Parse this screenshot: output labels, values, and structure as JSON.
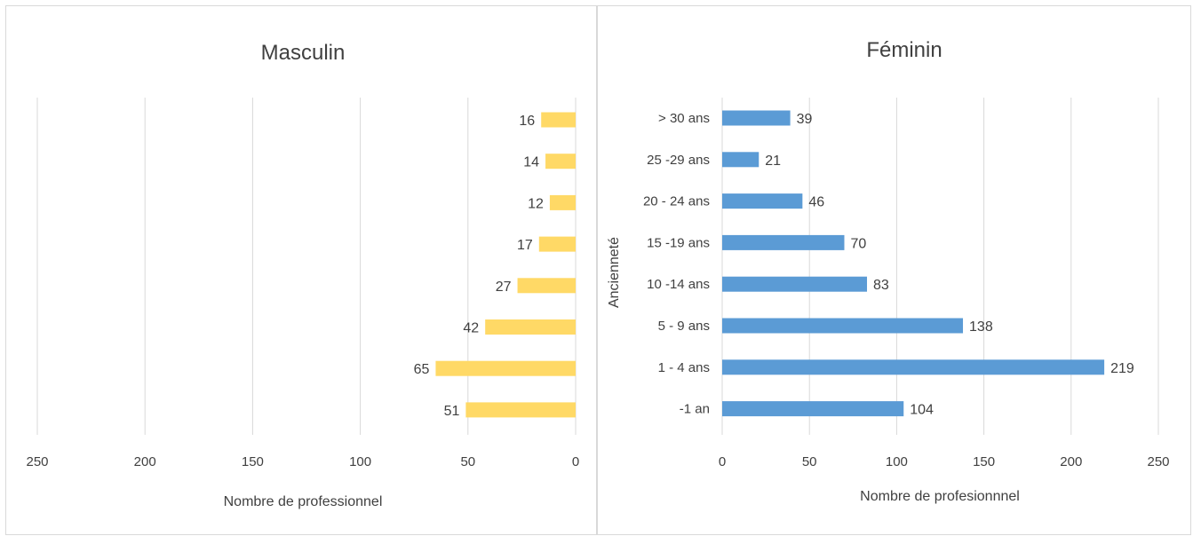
{
  "chart_data": [
    {
      "type": "bar",
      "orientation": "horizontal",
      "direction": "right-to-left",
      "title": "Masculin",
      "xlabel": "Nombre de professionnel",
      "ylabel": "",
      "xlim": [
        0,
        250
      ],
      "xticks": [
        250,
        200,
        150,
        100,
        50,
        0
      ],
      "grid": true,
      "colors": {
        "bar": "#FFD966"
      },
      "categories": [
        "> 30 ans",
        "25 -29 ans",
        "20 - 24 ans",
        "15 -19 ans",
        "10 -14 ans",
        "5 - 9 ans",
        "1 - 4 ans",
        "-1 an"
      ],
      "values": [
        16,
        14,
        12,
        17,
        27,
        42,
        65,
        51
      ]
    },
    {
      "type": "bar",
      "orientation": "horizontal",
      "direction": "left-to-right",
      "title": "Féminin",
      "xlabel": "Nombre de profesionnnel",
      "ylabel": "Ancienneté",
      "xlim": [
        0,
        250
      ],
      "xticks": [
        0,
        50,
        100,
        150,
        200,
        250
      ],
      "grid": true,
      "colors": {
        "bar": "#5B9BD5"
      },
      "categories": [
        "> 30 ans",
        "25 -29 ans",
        "20 - 24 ans",
        "15 -19 ans",
        "10 -14 ans",
        "5 - 9 ans",
        "1 - 4 ans",
        "-1 an"
      ],
      "values": [
        39,
        21,
        46,
        70,
        83,
        138,
        219,
        104
      ]
    }
  ]
}
